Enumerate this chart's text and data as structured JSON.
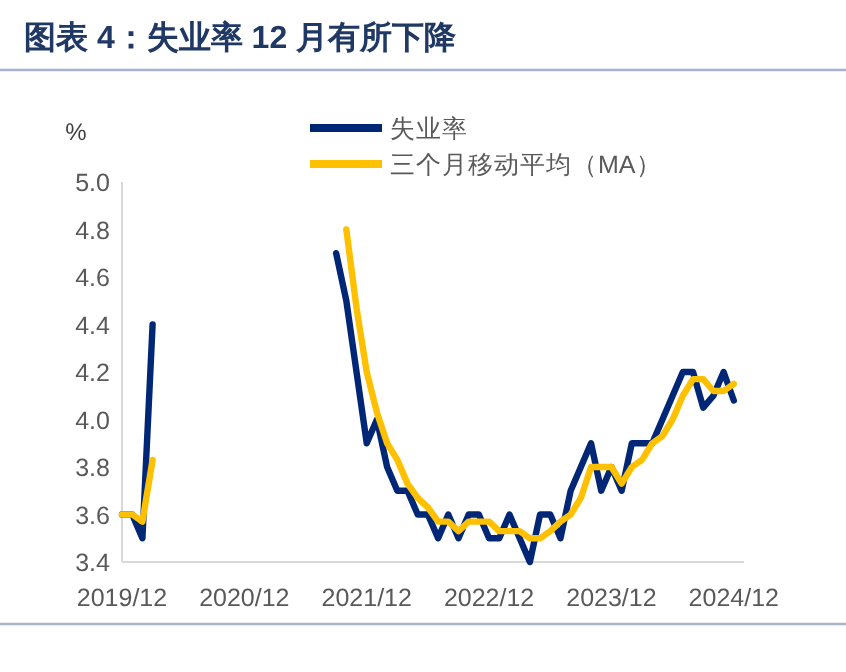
{
  "chart_data": {
    "type": "line",
    "title": "图表 4：失业率 12 月有所下降",
    "ylabel": "%",
    "x": [
      "2019-12",
      "2020-01",
      "2020-02",
      "2020-03",
      "2020-04",
      "2020-05",
      "2020-06",
      "2020-07",
      "2020-08",
      "2020-09",
      "2020-10",
      "2020-11",
      "2020-12",
      "2021-01",
      "2021-02",
      "2021-03",
      "2021-04",
      "2021-05",
      "2021-06",
      "2021-07",
      "2021-08",
      "2021-09",
      "2021-10",
      "2021-11",
      "2021-12",
      "2022-01",
      "2022-02",
      "2022-03",
      "2022-04",
      "2022-05",
      "2022-06",
      "2022-07",
      "2022-08",
      "2022-09",
      "2022-10",
      "2022-11",
      "2022-12",
      "2023-01",
      "2023-02",
      "2023-03",
      "2023-04",
      "2023-05",
      "2023-06",
      "2023-07",
      "2023-08",
      "2023-09",
      "2023-10",
      "2023-11",
      "2023-12",
      "2024-01",
      "2024-02",
      "2024-03",
      "2024-04",
      "2024-05",
      "2024-06",
      "2024-07",
      "2024-08",
      "2024-09",
      "2024-10",
      "2024-11",
      "2024-12"
    ],
    "series": [
      {
        "name": "失业率",
        "color": "#002776",
        "values": [
          3.6,
          3.6,
          3.5,
          4.4,
          null,
          null,
          null,
          null,
          null,
          null,
          null,
          null,
          null,
          null,
          null,
          null,
          null,
          null,
          null,
          null,
          null,
          4.7,
          4.5,
          4.2,
          3.9,
          4.0,
          3.8,
          3.7,
          3.7,
          3.6,
          3.6,
          3.5,
          3.6,
          3.5,
          3.6,
          3.6,
          3.5,
          3.5,
          3.6,
          3.5,
          3.4,
          3.6,
          3.6,
          3.5,
          3.7,
          3.8,
          3.9,
          3.7,
          3.8,
          3.7,
          3.9,
          3.9,
          3.9,
          4.0,
          4.1,
          4.2,
          4.2,
          4.05,
          4.1,
          4.2,
          4.08
        ]
      },
      {
        "name": "三个月移动平均（MA）",
        "color": "#ffc000",
        "values": [
          3.6,
          3.6,
          3.57,
          3.83,
          null,
          null,
          null,
          null,
          null,
          null,
          null,
          null,
          null,
          null,
          null,
          null,
          null,
          null,
          null,
          null,
          null,
          null,
          4.8,
          4.47,
          4.2,
          4.03,
          3.9,
          3.83,
          3.73,
          3.67,
          3.63,
          3.57,
          3.57,
          3.53,
          3.57,
          3.57,
          3.57,
          3.53,
          3.53,
          3.53,
          3.5,
          3.5,
          3.53,
          3.57,
          3.6,
          3.67,
          3.8,
          3.8,
          3.8,
          3.73,
          3.8,
          3.83,
          3.9,
          3.93,
          4.0,
          4.1,
          4.17,
          4.17,
          4.12,
          4.12,
          4.15
        ]
      }
    ],
    "xlim": [
      "2019-12",
      "2025-01"
    ],
    "xticks": [
      {
        "value": "2019-12",
        "label": "2019/12"
      },
      {
        "value": "2020-12",
        "label": "2020/12"
      },
      {
        "value": "2021-12",
        "label": "2021/12"
      },
      {
        "value": "2022-12",
        "label": "2022/12"
      },
      {
        "value": "2023-12",
        "label": "2023/12"
      },
      {
        "value": "2024-12",
        "label": "2024/12"
      }
    ],
    "ylim": [
      3.4,
      5.0
    ],
    "yticks": [
      3.4,
      3.6,
      3.8,
      {
        "value": 4,
        "label": "4.0"
      },
      4.2,
      4.4,
      4.6,
      4.8,
      {
        "value": 5,
        "label": "5.0"
      }
    ],
    "grid": false,
    "legend": "top",
    "marker": "none",
    "line_style": "solid"
  }
}
